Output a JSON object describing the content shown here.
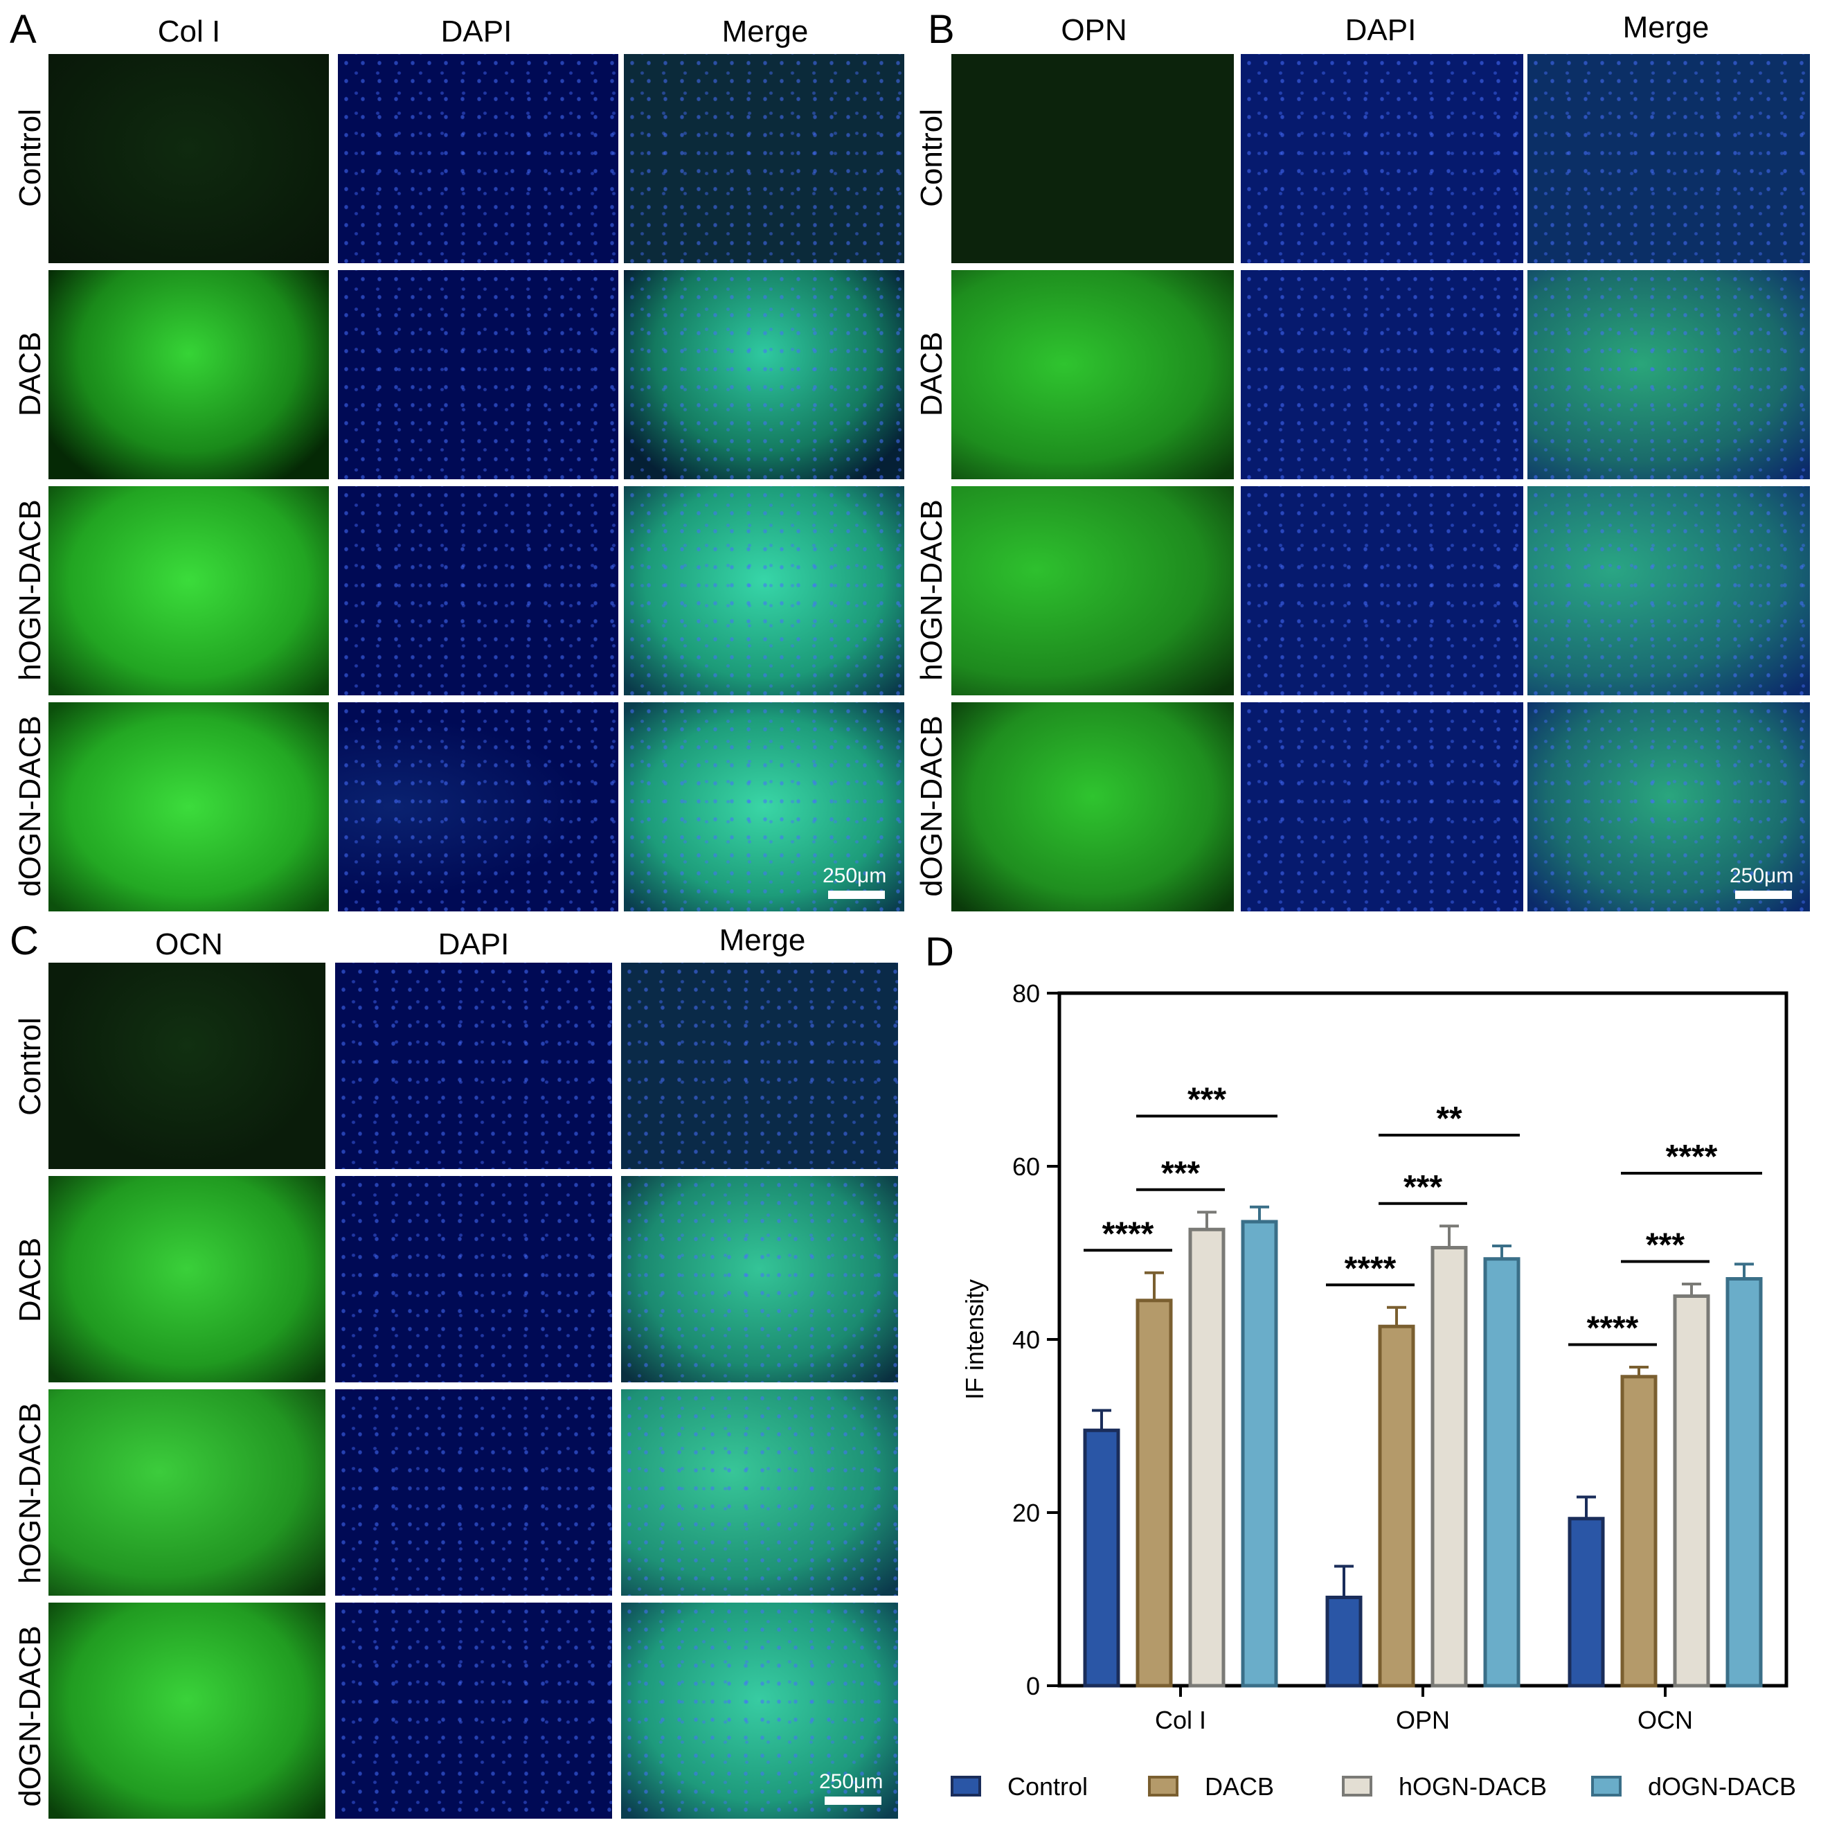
{
  "panels": [
    {
      "letter": "A",
      "columns": [
        "Col I",
        "DAPI",
        "Merge"
      ],
      "rows": [
        "Control",
        "DACB",
        "hOGN-DACB",
        "dOGN-DACB"
      ],
      "scale_bar": "250μm"
    },
    {
      "letter": "B",
      "columns": [
        "OPN",
        "DAPI",
        "Merge"
      ],
      "rows": [
        "Control",
        "DACB",
        "hOGN-DACB",
        "dOGN-DACB"
      ],
      "scale_bar": "250μm"
    },
    {
      "letter": "C",
      "columns": [
        "OCN",
        "DAPI",
        "Merge"
      ],
      "rows": [
        "Control",
        "DACB",
        "hOGN-DACB",
        "dOGN-DACB"
      ],
      "scale_bar": "250μm"
    }
  ],
  "chart_panel_letter": "D",
  "colors": {
    "Control": "#2a56a6",
    "DACB": "#b49a6a",
    "hOGN-DACB": "#e3ded3",
    "dOGN-DACB": "#6aadc9",
    "Control_edge": "#1a2d5a",
    "DACB_edge": "#7a5f30",
    "hOGN-DACB_edge": "#7a7a76",
    "dOGN-DACB_edge": "#3a6f88"
  },
  "chart_data": {
    "type": "bar",
    "categories": [
      "Col I",
      "OPN",
      "OCN"
    ],
    "ylabel": "IF intensity",
    "xlabel": "",
    "ylim": [
      0,
      80
    ],
    "yticks": [
      0,
      20,
      40,
      60,
      80
    ],
    "legend_position": "bottom",
    "series": [
      {
        "name": "Control",
        "values": [
          29.5,
          10.2,
          19.3
        ],
        "errors": [
          2.3,
          3.6,
          2.5
        ]
      },
      {
        "name": "DACB",
        "values": [
          44.5,
          41.5,
          35.7
        ],
        "errors": [
          3.2,
          2.2,
          1.1
        ]
      },
      {
        "name": "hOGN-DACB",
        "values": [
          52.7,
          50.6,
          45.0
        ],
        "errors": [
          2.0,
          2.5,
          1.4
        ]
      },
      {
        "name": "dOGN-DACB",
        "values": [
          53.6,
          49.3,
          47.0
        ],
        "errors": [
          1.7,
          1.5,
          1.7
        ]
      }
    ],
    "significance": [
      {
        "category": "Col I",
        "from": "Control",
        "to": "DACB",
        "label": "****"
      },
      {
        "category": "Col I",
        "from": "DACB",
        "to": "hOGN-DACB",
        "label": "***"
      },
      {
        "category": "Col I",
        "from": "DACB",
        "to": "dOGN-DACB",
        "label": "***"
      },
      {
        "category": "OPN",
        "from": "Control",
        "to": "DACB",
        "label": "****"
      },
      {
        "category": "OPN",
        "from": "DACB",
        "to": "hOGN-DACB",
        "label": "***"
      },
      {
        "category": "OPN",
        "from": "DACB",
        "to": "dOGN-DACB",
        "label": "**"
      },
      {
        "category": "OCN",
        "from": "Control",
        "to": "DACB",
        "label": "****"
      },
      {
        "category": "OCN",
        "from": "DACB",
        "to": "hOGN-DACB",
        "label": "***"
      },
      {
        "category": "OCN",
        "from": "DACB",
        "to": "dOGN-DACB",
        "label": "****"
      }
    ]
  }
}
